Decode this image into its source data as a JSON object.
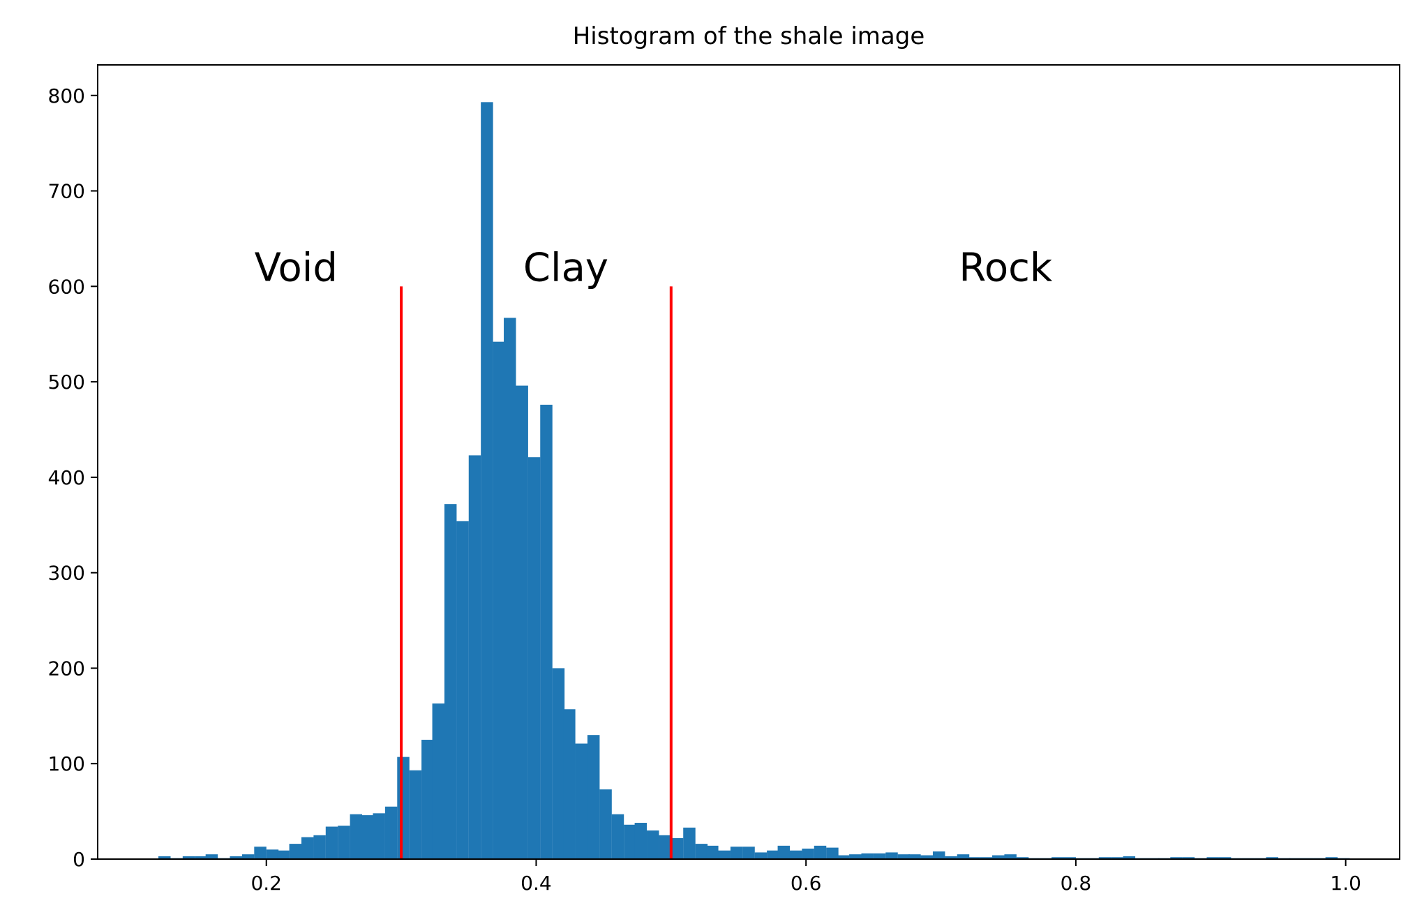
{
  "chart_data": {
    "type": "bar",
    "title": "Histogram of the shale image",
    "xlabel": "",
    "ylabel": "",
    "xlim": [
      0.075,
      1.04
    ],
    "ylim": [
      0,
      832
    ],
    "grid": false,
    "bar_color": "#1f77b4",
    "line_color": "#ff0000",
    "bin_width": 0.00883,
    "x_ticks": [
      {
        "value": 0.2,
        "label": "0.2"
      },
      {
        "value": 0.4,
        "label": "0.4"
      },
      {
        "value": 0.6,
        "label": "0.6"
      },
      {
        "value": 0.8,
        "label": "0.8"
      },
      {
        "value": 1.0,
        "label": "1.0"
      }
    ],
    "y_ticks": [
      {
        "value": 0,
        "label": "0"
      },
      {
        "value": 100,
        "label": "100"
      },
      {
        "value": 200,
        "label": "200"
      },
      {
        "value": 300,
        "label": "300"
      },
      {
        "value": 400,
        "label": "400"
      },
      {
        "value": 500,
        "label": "500"
      },
      {
        "value": 600,
        "label": "600"
      },
      {
        "value": 700,
        "label": "700"
      },
      {
        "value": 800,
        "label": "800"
      }
    ],
    "bins_start": [
      0.12,
      0.129,
      0.138,
      0.147,
      0.155,
      0.164,
      0.173,
      0.182,
      0.191,
      0.2,
      0.208,
      0.217,
      0.226,
      0.235,
      0.244,
      0.253,
      0.262,
      0.27,
      0.279,
      0.288,
      0.297,
      0.306,
      0.315,
      0.323,
      0.332,
      0.341,
      0.35,
      0.359,
      0.368,
      0.376,
      0.385,
      0.394,
      0.403,
      0.412,
      0.42,
      0.429,
      0.438,
      0.447,
      0.456,
      0.465,
      0.473,
      0.482,
      0.491,
      0.5,
      0.509,
      0.518,
      0.526,
      0.535,
      0.544,
      0.553,
      0.562,
      0.571,
      0.579,
      0.588,
      0.597,
      0.606,
      0.615,
      0.623,
      0.632,
      0.641,
      0.65,
      0.659,
      0.668,
      0.676,
      0.685,
      0.694,
      0.703,
      0.712,
      0.72,
      0.729,
      0.738,
      0.747,
      0.756,
      0.764,
      0.773,
      0.782,
      0.791,
      0.8,
      0.809,
      0.817,
      0.826,
      0.835,
      0.844,
      0.853,
      0.861,
      0.87,
      0.879,
      0.888,
      0.897,
      0.906,
      0.914,
      0.923,
      0.932,
      0.941,
      0.95,
      0.958,
      0.967,
      0.976,
      0.985,
      0.994
    ],
    "counts": [
      3,
      1,
      3,
      3,
      5,
      1,
      3,
      5,
      13,
      10,
      9,
      16,
      23,
      25,
      34,
      35,
      47,
      46,
      48,
      55,
      107,
      93,
      125,
      163,
      372,
      354,
      423,
      793,
      542,
      567,
      496,
      421,
      476,
      200,
      157,
      121,
      130,
      73,
      47,
      36,
      38,
      30,
      25,
      22,
      33,
      16,
      14,
      9,
      13,
      13,
      7,
      9,
      14,
      9,
      11,
      14,
      12,
      4,
      5,
      6,
      6,
      7,
      5,
      5,
      4,
      8,
      3,
      5,
      2,
      2,
      4,
      5,
      2,
      1,
      1,
      2,
      2,
      1,
      1,
      2,
      2,
      3,
      1,
      1,
      1,
      2,
      2,
      1,
      2,
      2,
      1,
      1,
      1,
      2,
      1,
      1,
      1,
      1,
      2,
      1
    ],
    "thresholds": [
      {
        "x": 0.3,
        "y_top": 600
      },
      {
        "x": 0.5,
        "y_top": 600
      }
    ],
    "annotations": [
      {
        "text": "Void",
        "x": 0.222,
        "y": 600
      },
      {
        "text": "Clay",
        "x": 0.422,
        "y": 600
      },
      {
        "text": "Rock",
        "x": 0.748,
        "y": 600
      }
    ]
  }
}
